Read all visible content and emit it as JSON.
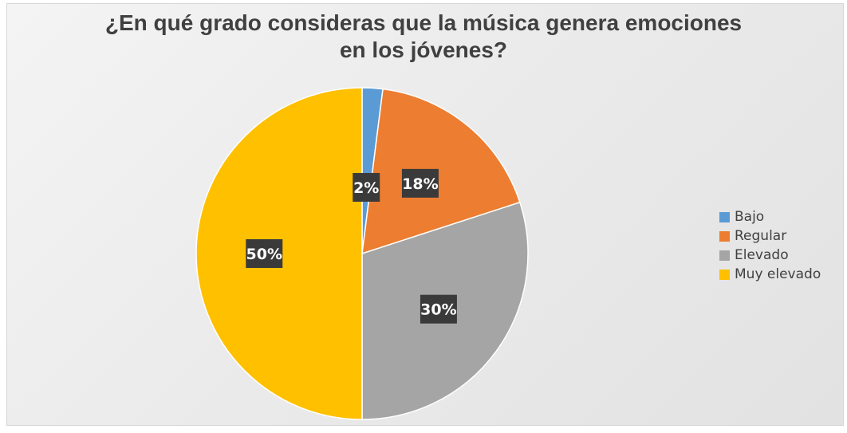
{
  "chart_data": {
    "type": "pie",
    "title_lines": [
      "¿En qué grado consideras que la música genera emociones",
      "en los jóvenes?"
    ],
    "categories": [
      "Bajo",
      "Regular",
      "Elevado",
      "Muy elevado"
    ],
    "values": [
      2,
      18,
      30,
      50
    ],
    "data_labels": [
      "2%",
      "18%",
      "30%",
      "50%"
    ],
    "colors": [
      "#5B9BD5",
      "#ED7D31",
      "#A5A5A5",
      "#FFC000"
    ],
    "legend_position": "right",
    "start_angle": "12 o'clock, clockwise"
  }
}
